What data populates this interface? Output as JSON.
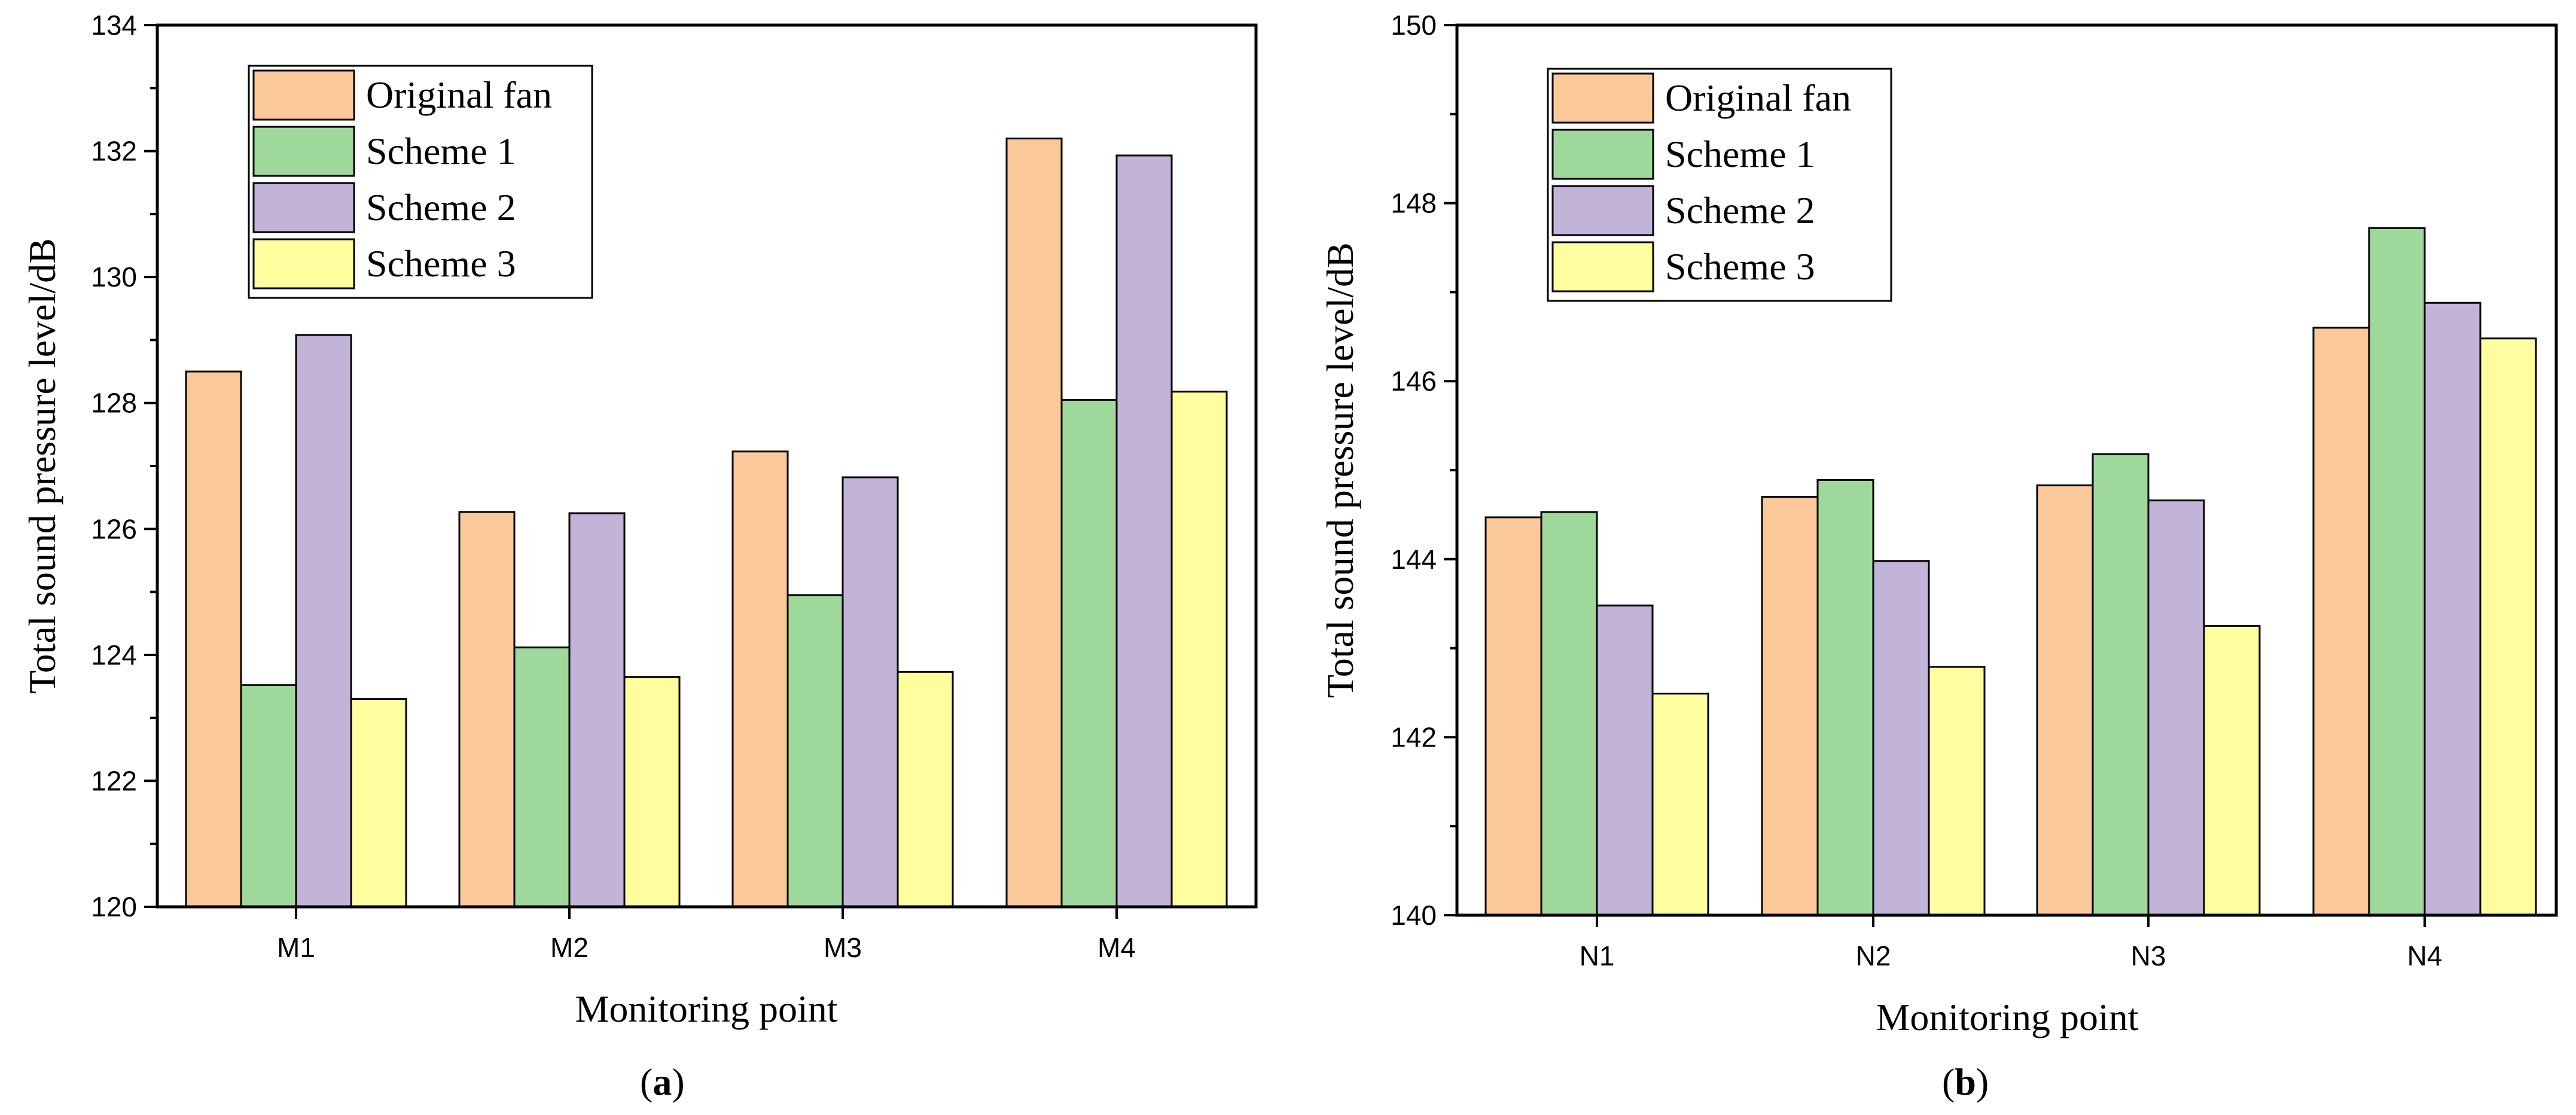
{
  "chart_data": [
    {
      "type": "bar",
      "panel_label": "a",
      "categories": [
        "M1",
        "M2",
        "M3",
        "M4"
      ],
      "series": [
        {
          "name": "Original fan",
          "color": "#fbc899",
          "values": [
            128.5,
            126.27,
            127.23,
            132.2
          ]
        },
        {
          "name": "Scheme 1",
          "color": "#9ed89a",
          "values": [
            123.52,
            124.12,
            124.95,
            128.05
          ]
        },
        {
          "name": "Scheme 2",
          "color": "#c2b4d9",
          "values": [
            129.08,
            126.25,
            126.82,
            131.93
          ]
        },
        {
          "name": "Scheme 3",
          "color": "#fefe9e",
          "values": [
            123.3,
            123.65,
            123.73,
            128.18
          ]
        }
      ],
      "xlabel": "Monitoring point",
      "ylabel": "Total sound pressure level/dB",
      "ylim": [
        120,
        134
      ],
      "yticks": [
        "120",
        "122",
        "124",
        "126",
        "128",
        "130",
        "132",
        "134"
      ],
      "legend_position": "top-left",
      "grid": false
    },
    {
      "type": "bar",
      "panel_label": "b",
      "categories": [
        "N1",
        "N2",
        "N3",
        "N4"
      ],
      "series": [
        {
          "name": "Original fan",
          "color": "#fbc899",
          "values": [
            144.47,
            144.7,
            144.83,
            146.6
          ]
        },
        {
          "name": "Scheme 1",
          "color": "#9ed89a",
          "values": [
            144.53,
            144.89,
            145.18,
            147.72
          ]
        },
        {
          "name": "Scheme 2",
          "color": "#c2b4d9",
          "values": [
            143.48,
            143.98,
            144.66,
            146.88
          ]
        },
        {
          "name": "Scheme 3",
          "color": "#fefe9e",
          "values": [
            142.49,
            142.79,
            143.25,
            146.48
          ]
        }
      ],
      "xlabel": "Monitoring point",
      "ylabel": "Total sound pressure level/dB",
      "ylim": [
        140,
        150
      ],
      "yticks": [
        "140",
        "142",
        "144",
        "146",
        "148",
        "150"
      ],
      "legend_position": "top-left",
      "grid": false
    }
  ]
}
